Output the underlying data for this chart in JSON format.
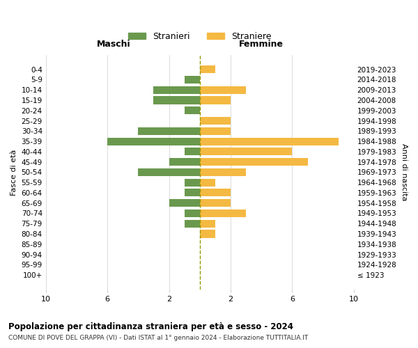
{
  "age_groups": [
    "100+",
    "95-99",
    "90-94",
    "85-89",
    "80-84",
    "75-79",
    "70-74",
    "65-69",
    "60-64",
    "55-59",
    "50-54",
    "45-49",
    "40-44",
    "35-39",
    "30-34",
    "25-29",
    "20-24",
    "15-19",
    "10-14",
    "5-9",
    "0-4"
  ],
  "birth_years": [
    "≤ 1923",
    "1924-1928",
    "1929-1933",
    "1934-1938",
    "1939-1943",
    "1944-1948",
    "1949-1953",
    "1954-1958",
    "1959-1963",
    "1964-1968",
    "1969-1973",
    "1974-1978",
    "1979-1983",
    "1984-1988",
    "1989-1993",
    "1994-1998",
    "1999-2003",
    "2004-2008",
    "2009-2013",
    "2014-2018",
    "2019-2023"
  ],
  "males": [
    0,
    0,
    0,
    0,
    0,
    1,
    1,
    2,
    1,
    1,
    4,
    2,
    1,
    6,
    4,
    0,
    1,
    3,
    3,
    1,
    0
  ],
  "females": [
    0,
    0,
    0,
    0,
    1,
    1,
    3,
    2,
    2,
    1,
    3,
    7,
    6,
    9,
    2,
    2,
    0,
    2,
    3,
    0,
    1
  ],
  "male_color": "#6a994e",
  "female_color": "#f4b942",
  "center_line_color": "#999900",
  "title": "Popolazione per cittadinanza straniera per età e sesso - 2024",
  "subtitle": "COMUNE DI POVE DEL GRAPPA (VI) - Dati ISTAT al 1° gennaio 2024 - Elaborazione TUTTITALIA.IT",
  "xlabel_left": "Maschi",
  "xlabel_right": "Femmine",
  "ylabel_left": "Fasce di età",
  "ylabel_right": "Anni di nascita",
  "legend_male": "Stranieri",
  "legend_female": "Straniere",
  "xlim": 10,
  "background_color": "#ffffff",
  "grid_color": "#cccccc"
}
